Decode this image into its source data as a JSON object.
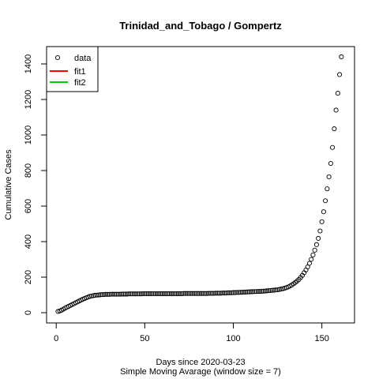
{
  "chart_data": {
    "type": "scatter",
    "title": "Trinidad_and_Tobago / Gompertz",
    "xlabel": "Days since 2020-03-23",
    "xlabel2": "Simple Moving Avarage (window size = 7)",
    "ylabel": "Cumulative Cases",
    "xlim": [
      1,
      162
    ],
    "ylim": [
      0,
      1440
    ],
    "xticks": [
      0,
      50,
      100,
      150
    ],
    "yticks": [
      0,
      200,
      400,
      600,
      800,
      1000,
      1200,
      1400
    ],
    "legend": {
      "position": "top-left",
      "entries": [
        {
          "label": "data",
          "symbol": "circle",
          "color": "#000000"
        },
        {
          "label": "fit1",
          "symbol": "line",
          "color": "#ff0000"
        },
        {
          "label": "fit2",
          "symbol": "line",
          "color": "#00cd00"
        }
      ]
    },
    "series": [
      {
        "name": "data",
        "points": [
          [
            1,
            7
          ],
          [
            2,
            10
          ],
          [
            3,
            14
          ],
          [
            4,
            20
          ],
          [
            5,
            26
          ],
          [
            6,
            31
          ],
          [
            7,
            36
          ],
          [
            8,
            41
          ],
          [
            9,
            46
          ],
          [
            10,
            51
          ],
          [
            11,
            56
          ],
          [
            12,
            61
          ],
          [
            13,
            66
          ],
          [
            14,
            71
          ],
          [
            15,
            76
          ],
          [
            16,
            80
          ],
          [
            17,
            84
          ],
          [
            18,
            88
          ],
          [
            19,
            92
          ],
          [
            20,
            94
          ],
          [
            21,
            96
          ],
          [
            22,
            98
          ],
          [
            23,
            99
          ],
          [
            24,
            100
          ],
          [
            25,
            101
          ],
          [
            26,
            102
          ],
          [
            27,
            102
          ],
          [
            28,
            103
          ],
          [
            29,
            103
          ],
          [
            30,
            103
          ],
          [
            31,
            104
          ],
          [
            32,
            104
          ],
          [
            33,
            104
          ],
          [
            34,
            104
          ],
          [
            35,
            104
          ],
          [
            36,
            104
          ],
          [
            37,
            105
          ],
          [
            38,
            105
          ],
          [
            39,
            105
          ],
          [
            40,
            105
          ],
          [
            41,
            106
          ],
          [
            42,
            106
          ],
          [
            43,
            106
          ],
          [
            44,
            106
          ],
          [
            45,
            106
          ],
          [
            46,
            106
          ],
          [
            47,
            106
          ],
          [
            48,
            106
          ],
          [
            49,
            107
          ],
          [
            50,
            107
          ],
          [
            51,
            107
          ],
          [
            52,
            107
          ],
          [
            53,
            107
          ],
          [
            54,
            107
          ],
          [
            55,
            107
          ],
          [
            56,
            107
          ],
          [
            57,
            107
          ],
          [
            58,
            107
          ],
          [
            59,
            107
          ],
          [
            60,
            107
          ],
          [
            61,
            107
          ],
          [
            62,
            107
          ],
          [
            63,
            107
          ],
          [
            64,
            107
          ],
          [
            65,
            107
          ],
          [
            66,
            107
          ],
          [
            67,
            107
          ],
          [
            68,
            107
          ],
          [
            69,
            107
          ],
          [
            70,
            107
          ],
          [
            71,
            107
          ],
          [
            72,
            108
          ],
          [
            73,
            108
          ],
          [
            74,
            108
          ],
          [
            75,
            108
          ],
          [
            76,
            108
          ],
          [
            77,
            108
          ],
          [
            78,
            108
          ],
          [
            79,
            108
          ],
          [
            80,
            108
          ],
          [
            81,
            108
          ],
          [
            82,
            108
          ],
          [
            83,
            108
          ],
          [
            84,
            108
          ],
          [
            85,
            108
          ],
          [
            86,
            109
          ],
          [
            87,
            109
          ],
          [
            88,
            109
          ],
          [
            89,
            109
          ],
          [
            90,
            110
          ],
          [
            91,
            110
          ],
          [
            92,
            110
          ],
          [
            93,
            110
          ],
          [
            94,
            111
          ],
          [
            95,
            111
          ],
          [
            96,
            111
          ],
          [
            97,
            112
          ],
          [
            98,
            112
          ],
          [
            99,
            112
          ],
          [
            100,
            113
          ],
          [
            101,
            113
          ],
          [
            102,
            114
          ],
          [
            103,
            114
          ],
          [
            104,
            115
          ],
          [
            105,
            115
          ],
          [
            106,
            116
          ],
          [
            107,
            116
          ],
          [
            108,
            117
          ],
          [
            109,
            117
          ],
          [
            110,
            118
          ],
          [
            111,
            118
          ],
          [
            112,
            119
          ],
          [
            113,
            119
          ],
          [
            114,
            120
          ],
          [
            115,
            120
          ],
          [
            116,
            121
          ],
          [
            117,
            121
          ],
          [
            118,
            122
          ],
          [
            119,
            123
          ],
          [
            120,
            124
          ],
          [
            121,
            125
          ],
          [
            122,
            126
          ],
          [
            123,
            127
          ],
          [
            124,
            128
          ],
          [
            125,
            129
          ],
          [
            126,
            131
          ],
          [
            127,
            133
          ],
          [
            128,
            135
          ],
          [
            129,
            138
          ],
          [
            130,
            141
          ],
          [
            131,
            145
          ],
          [
            132,
            150
          ],
          [
            133,
            156
          ],
          [
            134,
            163
          ],
          [
            135,
            170
          ],
          [
            136,
            178
          ],
          [
            137,
            187
          ],
          [
            138,
            198
          ],
          [
            139,
            210
          ],
          [
            140,
            225
          ],
          [
            141,
            240
          ],
          [
            142,
            258
          ],
          [
            143,
            278
          ],
          [
            144,
            300
          ],
          [
            145,
            325
          ],
          [
            146,
            352
          ],
          [
            147,
            383
          ],
          [
            148,
            418
          ],
          [
            149,
            460
          ],
          [
            150,
            512
          ],
          [
            151,
            568
          ],
          [
            152,
            630
          ],
          [
            153,
            697
          ],
          [
            154,
            765
          ],
          [
            155,
            840
          ],
          [
            156,
            930
          ],
          [
            157,
            1035
          ],
          [
            158,
            1140
          ],
          [
            159,
            1235
          ],
          [
            160,
            1340
          ],
          [
            161,
            1440
          ]
        ]
      }
    ]
  }
}
